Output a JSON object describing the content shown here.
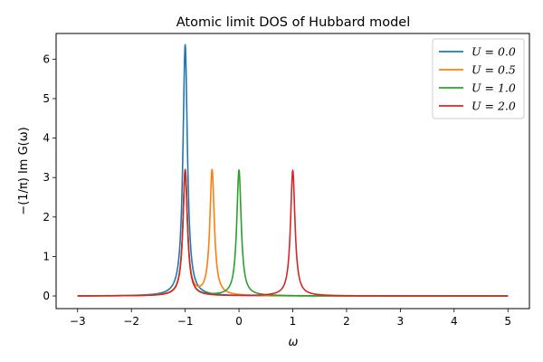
{
  "chart_data": {
    "type": "line",
    "title": "Atomic limit DOS of Hubbard model",
    "xlabel": "ω",
    "ylabel": "−(1/π) Im G(ω)",
    "xlim": [
      -3.4,
      5.4
    ],
    "ylim": [
      -0.32,
      6.65
    ],
    "x_ticks": [
      -3,
      -2,
      -1,
      0,
      1,
      2,
      3,
      4,
      5
    ],
    "x_tick_labels": [
      "−3",
      "−2",
      "−1",
      "0",
      "1",
      "2",
      "3",
      "4",
      "5"
    ],
    "y_ticks": [
      0,
      1,
      2,
      3,
      4,
      5,
      6
    ],
    "y_tick_labels": [
      "0",
      "1",
      "2",
      "3",
      "4",
      "5",
      "6"
    ],
    "grid": false,
    "legend_position": "top-right",
    "x_range": [
      -3,
      5
    ],
    "broadening": 0.05,
    "series": [
      {
        "name": "U = 0.0",
        "U": 0.0,
        "color": "#1f77b4",
        "peaks": [
          -1.0,
          -1.0
        ],
        "peak_heights": [
          6.37,
          6.37
        ]
      },
      {
        "name": "U = 0.5",
        "U": 0.5,
        "color": "#ff7f0e",
        "peaks": [
          -1.0,
          -0.5
        ],
        "peak_heights": [
          3.18,
          3.18
        ]
      },
      {
        "name": "U = 1.0",
        "U": 1.0,
        "color": "#2ca02c",
        "peaks": [
          -1.0,
          0.0
        ],
        "peak_heights": [
          3.18,
          3.18
        ]
      },
      {
        "name": "U = 2.0",
        "U": 2.0,
        "color": "#d62728",
        "peaks": [
          -1.0,
          1.0
        ],
        "peak_heights": [
          3.18,
          3.18
        ]
      }
    ]
  }
}
